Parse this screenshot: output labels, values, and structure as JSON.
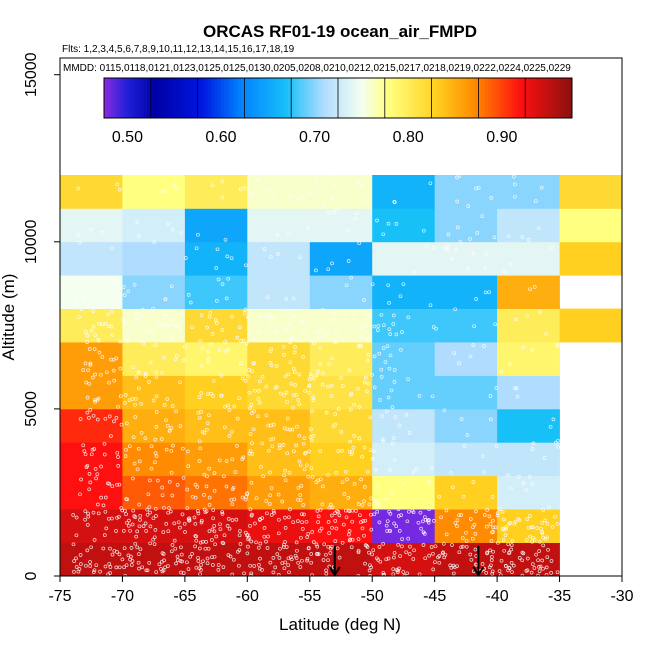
{
  "chart_data": {
    "type": "heatmap",
    "title": "ORCAS RF01-19 ocean_air_FMPD",
    "subtitle": "Flts: 1,2,3,4,5,6,7,8,9,10,11,12,13,14,15,16,17,18,19",
    "legend_note": "MMDD: 0115,0118,0121,0123,0125,0125,0130,0205,0208,0210,0212,0215,0217,0218,0219,0222,0224,0225,0229",
    "xlabel": "Latitude (deg N)",
    "ylabel": "Altitude (m)",
    "xlim": [
      -75,
      -30
    ],
    "ylim": [
      0,
      15500
    ],
    "x_ticks": [
      -75,
      -70,
      -65,
      -60,
      -55,
      -50,
      -45,
      -40,
      -35,
      -30
    ],
    "x_tick_labels": [
      "-75",
      "-70",
      "-65",
      "-60",
      "-55",
      "-50",
      "-45",
      "-40",
      "-35",
      "-30"
    ],
    "y_ticks": [
      0,
      5000,
      10000,
      15000
    ],
    "y_tick_labels": [
      "0",
      "5000",
      "10000",
      "15000"
    ],
    "colorbar": {
      "min": 0.475,
      "max": 0.975,
      "ticks": [
        0.5,
        0.6,
        0.7,
        0.8,
        0.9
      ],
      "tick_labels": [
        "0.50",
        "0.60",
        "0.70",
        "0.80",
        "0.90"
      ],
      "stops": [
        {
          "v": 0.475,
          "c": "#8a2be2"
        },
        {
          "v": 0.5,
          "c": "#2020d8"
        },
        {
          "v": 0.53,
          "c": "#0000a8"
        },
        {
          "v": 0.58,
          "c": "#0018e0"
        },
        {
          "v": 0.62,
          "c": "#0080ff"
        },
        {
          "v": 0.67,
          "c": "#18c0f8"
        },
        {
          "v": 0.71,
          "c": "#b0dcff"
        },
        {
          "v": 0.75,
          "c": "#f4fff0"
        },
        {
          "v": 0.78,
          "c": "#ffff80"
        },
        {
          "v": 0.83,
          "c": "#ffd020"
        },
        {
          "v": 0.87,
          "c": "#ff8c00"
        },
        {
          "v": 0.92,
          "c": "#ff1010"
        },
        {
          "v": 0.975,
          "c": "#8b1010"
        }
      ]
    },
    "lat_bin_edges": [
      -75,
      -70,
      -65,
      -60,
      -55,
      -50,
      -45,
      -40,
      -35,
      -30
    ],
    "alt_bin_edges": [
      0,
      1000,
      2000,
      3000,
      4000,
      5000,
      6000,
      7000,
      8000,
      9000,
      10000,
      11000,
      12000
    ],
    "rows": [
      {
        "alt": [
          0,
          1000
        ],
        "values": [
          0.95,
          0.95,
          0.95,
          0.95,
          0.95,
          0.94,
          0.95,
          0.95,
          null
        ]
      },
      {
        "alt": [
          1000,
          2000
        ],
        "values": [
          0.94,
          0.94,
          0.94,
          0.93,
          0.92,
          0.48,
          0.87,
          0.83,
          null
        ]
      },
      {
        "alt": [
          2000,
          3000
        ],
        "values": [
          0.92,
          0.89,
          0.88,
          0.86,
          0.85,
          0.78,
          0.83,
          0.73,
          null
        ]
      },
      {
        "alt": [
          3000,
          4000
        ],
        "values": [
          0.92,
          0.87,
          0.86,
          0.84,
          0.83,
          0.73,
          0.72,
          0.72,
          null
        ]
      },
      {
        "alt": [
          4000,
          5000
        ],
        "values": [
          0.91,
          0.85,
          0.84,
          0.84,
          0.82,
          0.72,
          0.7,
          0.67,
          null
        ]
      },
      {
        "alt": [
          5000,
          6000
        ],
        "values": [
          0.86,
          0.84,
          0.83,
          0.82,
          0.81,
          0.69,
          0.69,
          0.71,
          null
        ]
      },
      {
        "alt": [
          6000,
          7000
        ],
        "values": [
          0.86,
          0.8,
          0.79,
          0.82,
          0.8,
          0.69,
          0.71,
          0.79,
          null
        ]
      },
      {
        "alt": [
          7000,
          8000
        ],
        "values": [
          0.8,
          0.76,
          0.82,
          0.76,
          0.76,
          0.68,
          0.68,
          0.8,
          0.83
        ]
      },
      {
        "alt": [
          8000,
          9000
        ],
        "values": [
          0.75,
          0.7,
          0.68,
          0.72,
          0.7,
          0.66,
          0.66,
          0.85,
          null
        ]
      },
      {
        "alt": [
          9000,
          10000
        ],
        "values": [
          0.72,
          0.71,
          0.66,
          0.72,
          0.65,
          0.74,
          0.74,
          0.74,
          0.83
        ]
      },
      {
        "alt": [
          10000,
          11000
        ],
        "values": [
          0.74,
          0.73,
          0.65,
          0.74,
          0.74,
          0.67,
          0.7,
          0.72,
          0.78
        ]
      },
      {
        "alt": [
          11000,
          12000
        ],
        "values": [
          0.82,
          0.78,
          0.8,
          0.76,
          0.76,
          0.66,
          0.7,
          0.7,
          0.82
        ]
      }
    ],
    "arrows_latitude": [
      -53,
      -41.5
    ],
    "point_count": 1400
  }
}
